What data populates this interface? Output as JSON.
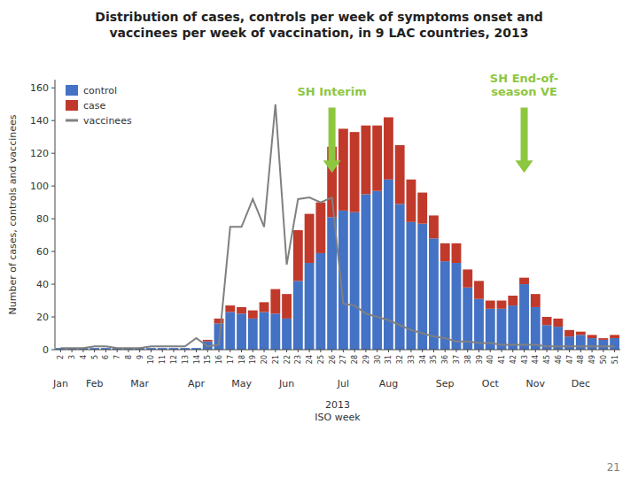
{
  "chart_data": {
    "type": "bar",
    "stacked": true,
    "title": "Distribution of cases, controls per week of symptoms onset and\nvaccinees per week of vaccination, in 9 LAC countries, 2013",
    "y_label": "Number of cases, controls and vaccinees",
    "x_label": "2013\nISO week",
    "categories": [
      "2",
      "3",
      "4",
      "5",
      "6",
      "7",
      "8",
      "9",
      "10",
      "11",
      "12",
      "13",
      "14",
      "15",
      "16",
      "17",
      "18",
      "19",
      "20",
      "21",
      "22",
      "23",
      "24",
      "25",
      "26",
      "27",
      "28",
      "29",
      "30",
      "31",
      "32",
      "33",
      "34",
      "35",
      "36",
      "37",
      "38",
      "39",
      "40",
      "41",
      "42",
      "43",
      "44",
      "45",
      "46",
      "47",
      "48",
      "49",
      "50",
      "51"
    ],
    "series": [
      {
        "name": "control",
        "type": "bar",
        "color": "#4472c4",
        "values": [
          1,
          1,
          1,
          1,
          1,
          1,
          1,
          1,
          1,
          1,
          1,
          1,
          1,
          5,
          16,
          23,
          22,
          19,
          23,
          22,
          19,
          42,
          53,
          59,
          81,
          85,
          84,
          95,
          97,
          104,
          89,
          78,
          77,
          68,
          54,
          53,
          38,
          31,
          25,
          25,
          27,
          40,
          26,
          15,
          14,
          8,
          9,
          7,
          6,
          7
        ]
      },
      {
        "name": "case",
        "type": "bar",
        "color": "#c0392b",
        "values": [
          0,
          0,
          0,
          0,
          0,
          0,
          0,
          0,
          0,
          0,
          0,
          0,
          0,
          1,
          3,
          4,
          4,
          5,
          6,
          15,
          15,
          31,
          30,
          31,
          43,
          50,
          49,
          42,
          40,
          38,
          36,
          26,
          19,
          14,
          11,
          12,
          11,
          11,
          5,
          5,
          6,
          4,
          8,
          5,
          5,
          4,
          2,
          2,
          1,
          2
        ]
      },
      {
        "name": "vaccinees",
        "type": "line",
        "color": "#808080",
        "values": [
          1,
          1,
          1,
          2,
          2,
          1,
          1,
          1,
          2,
          2,
          2,
          2,
          7,
          2,
          3,
          75,
          75,
          92,
          75,
          150,
          52,
          92,
          93,
          90,
          93,
          28,
          27,
          22,
          20,
          18,
          15,
          12,
          10,
          8,
          7,
          5,
          5,
          4,
          4,
          3,
          3,
          3,
          3,
          2,
          2,
          2,
          2,
          2,
          2,
          2
        ]
      }
    ],
    "ylim": [
      0,
      165
    ],
    "yticks": [
      0,
      20,
      40,
      60,
      80,
      100,
      120,
      140,
      160
    ],
    "x2ticks": [
      {
        "value": 2,
        "label": "Jan"
      },
      {
        "value": 5,
        "label": "Feb"
      },
      {
        "value": 9,
        "label": "Mar"
      },
      {
        "value": 14,
        "label": "Apr"
      },
      {
        "value": 18,
        "label": "May"
      },
      {
        "value": 22,
        "label": "Jun"
      },
      {
        "value": 27,
        "label": "Jul"
      },
      {
        "value": 31,
        "label": "Aug"
      },
      {
        "value": 36,
        "label": "Sep"
      },
      {
        "value": 40,
        "label": "Oct"
      },
      {
        "value": 44,
        "label": "Nov"
      },
      {
        "value": 48,
        "label": "Dec"
      }
    ],
    "annotations": [
      {
        "text": "SH Interim",
        "x": "26",
        "y": 155,
        "arrow_from": 148,
        "arrow_to": 108,
        "color": "#8dc63f"
      },
      {
        "text": "SH End-of-\nseason VE",
        "x": "43",
        "y": 155,
        "arrow_from": 148,
        "arrow_to": 108,
        "color": "#8dc63f"
      }
    ],
    "footer": "21",
    "legend": "upper left",
    "grid": false
  }
}
